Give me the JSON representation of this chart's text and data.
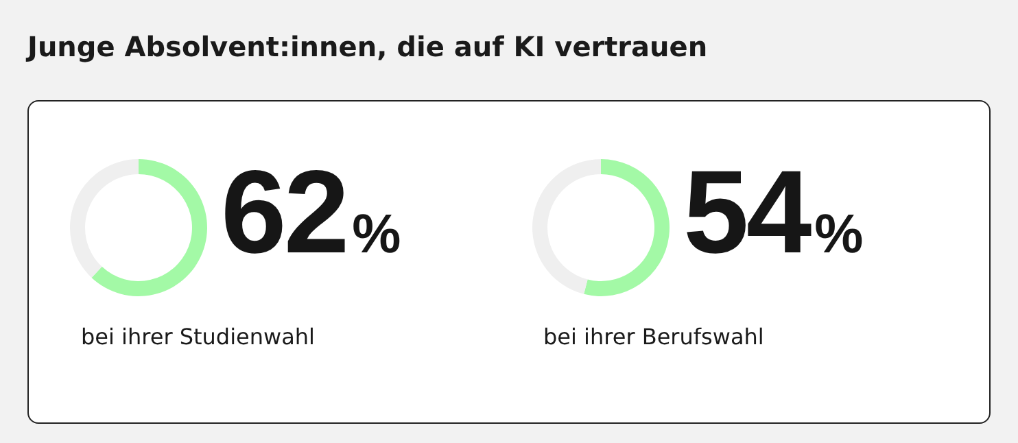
{
  "chart_data": [
    {
      "type": "donut",
      "title": "Junge Absolvent:innen, die auf KI vertrauen",
      "categories": [
        null,
        null
      ],
      "values": [
        62,
        38
      ],
      "colors": [
        "#a3f9a6",
        "#efefef"
      ],
      "value_labels": [
        "62%",
        null
      ],
      "annotations": [
        "bei ihrer Studienwahl"
      ]
    },
    {
      "type": "donut",
      "categories": [
        null,
        null
      ],
      "values": [
        54,
        46
      ],
      "colors": [
        "#a3f9a6",
        "#efefef"
      ],
      "value_labels": [
        "54%",
        null
      ],
      "annotations": [
        "bei ihrer Berufswahl"
      ]
    }
  ]
}
